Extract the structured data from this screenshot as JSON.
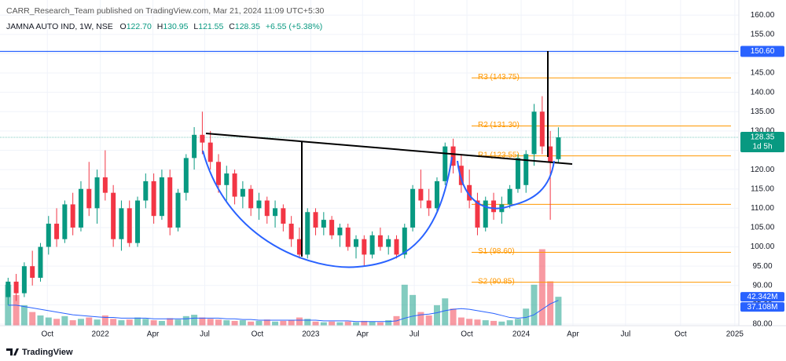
{
  "header": {
    "publisher": "CARR_Research_Team published on TradingView.com, Mar 21, 2024 11:09 UTC+5:30",
    "symbol": "JAMNA AUTO IND, 1W, NSE",
    "ohlc_labels": [
      "O",
      "H",
      "L",
      "C"
    ],
    "ohlc_values": [
      "122.70",
      "130.95",
      "121.55",
      "128.35"
    ],
    "change": "+6.55 (+5.38%)"
  },
  "footer": {
    "brand": "TradingView"
  },
  "chart_data": {
    "type": "candlestick",
    "up_color": "#089981",
    "down_color": "#f23645",
    "open": [
      87,
      91,
      88,
      95,
      92,
      100,
      106,
      102,
      111,
      105,
      115,
      110,
      118,
      114,
      102,
      110,
      101,
      112,
      117,
      108,
      118,
      105,
      114,
      123,
      129,
      127,
      122,
      116,
      119,
      113,
      115,
      110,
      112,
      108,
      110,
      106,
      102,
      98,
      109,
      105,
      107,
      103,
      105,
      100,
      102,
      98,
      103,
      100,
      102,
      98,
      105,
      115,
      112,
      110,
      117,
      126,
      121,
      116,
      112,
      105,
      112,
      109,
      111,
      115,
      116,
      124,
      135,
      126,
      122.7
    ],
    "high": [
      92,
      93,
      96,
      99,
      101,
      108,
      110,
      112,
      114,
      117,
      122,
      120,
      125,
      116,
      112,
      112,
      113,
      119,
      119,
      120,
      120,
      115,
      124,
      131,
      135,
      130,
      124,
      121,
      120,
      117,
      116,
      114,
      113,
      112,
      111,
      108,
      105,
      110,
      110,
      109,
      108,
      106,
      106,
      103,
      103,
      104,
      105,
      103,
      103,
      106,
      116,
      120,
      115,
      118,
      127,
      128,
      124,
      120,
      114,
      113,
      114,
      113,
      116,
      124,
      125,
      137,
      139,
      130,
      130.95
    ],
    "low": [
      85,
      86,
      87,
      90,
      91,
      98,
      100,
      101,
      103,
      104,
      108,
      106,
      112,
      100,
      99,
      100,
      100,
      110,
      106,
      107,
      103,
      104,
      112,
      120,
      124,
      120,
      114,
      112,
      111,
      110,
      108,
      107,
      106,
      105,
      104,
      100,
      97,
      97,
      103,
      103,
      102,
      100,
      99,
      97,
      95,
      97,
      99,
      98,
      97,
      97,
      104,
      110,
      108,
      109,
      116,
      119,
      114,
      110,
      103,
      104,
      107,
      106,
      110,
      114,
      114,
      121,
      124,
      107,
      121.55
    ],
    "close": [
      91,
      88,
      95,
      92,
      100,
      106,
      102,
      111,
      105,
      115,
      110,
      118,
      114,
      102,
      110,
      101,
      112,
      117,
      108,
      118,
      105,
      114,
      123,
      129,
      127,
      122,
      116,
      119,
      113,
      115,
      110,
      112,
      108,
      110,
      106,
      102,
      98,
      109,
      105,
      107,
      103,
      105,
      100,
      102,
      98,
      103,
      100,
      102,
      98,
      105,
      115,
      112,
      110,
      117,
      126,
      121,
      116,
      112,
      105,
      112,
      109,
      111,
      115,
      123,
      124,
      135,
      126,
      121.8,
      128.35
    ],
    "volume": [
      60,
      45,
      30,
      20,
      15,
      12,
      10,
      14,
      8,
      10,
      12,
      9,
      15,
      10,
      8,
      9,
      12,
      10,
      8,
      7,
      11,
      9,
      14,
      16,
      12,
      10,
      9,
      8,
      7,
      8,
      6,
      7,
      9,
      6,
      7,
      8,
      12,
      10,
      6,
      5,
      6,
      5,
      6,
      5,
      7,
      6,
      5,
      8,
      14,
      60,
      45,
      20,
      15,
      30,
      40,
      25,
      12,
      10,
      9,
      8,
      7,
      6,
      8,
      10,
      25,
      60,
      112,
      65,
      42.342
    ],
    "volume_label": "42.342M",
    "volume_ma": [
      30,
      30,
      28,
      26,
      24,
      22,
      20,
      18,
      16,
      15,
      14,
      13,
      12,
      12,
      11,
      11,
      11,
      11,
      10,
      10,
      10,
      10,
      10,
      11,
      11,
      11,
      11,
      10,
      10,
      9,
      9,
      8,
      8,
      8,
      8,
      8,
      8,
      8,
      8,
      7,
      7,
      7,
      7,
      6,
      6,
      6,
      6,
      6,
      7,
      11,
      14,
      16,
      17,
      19,
      22,
      24,
      25,
      24,
      22,
      20,
      18,
      15,
      12,
      11,
      12,
      16,
      24,
      32,
      37.108
    ],
    "volume_ma_label": "37.108M",
    "xlim": [
      -1,
      90.3
    ],
    "xticks": [
      {
        "value": 4.85,
        "label": "Oct"
      },
      {
        "value": 11.4,
        "label": "2022"
      },
      {
        "value": 17.9,
        "label": "Apr"
      },
      {
        "value": 24.3,
        "label": "Jul"
      },
      {
        "value": 30.8,
        "label": "Oct"
      },
      {
        "value": 37.4,
        "label": "2023"
      },
      {
        "value": 43.8,
        "label": "Apr"
      },
      {
        "value": 50.2,
        "label": "Jul"
      },
      {
        "value": 56.7,
        "label": "Oct"
      },
      {
        "value": 63.4,
        "label": "2024"
      },
      {
        "value": 69.8,
        "label": "Apr"
      },
      {
        "value": 76.3,
        "label": "Jul"
      },
      {
        "value": 83.1,
        "label": "Oct"
      },
      {
        "value": 89.8,
        "label": "2025"
      }
    ],
    "ylim": [
      79.6,
      163.9
    ],
    "yticks": [
      {
        "value": 80,
        "label": "80.00"
      },
      {
        "value": 85,
        "label": "85.00"
      },
      {
        "value": 90,
        "label": "90.00"
      },
      {
        "value": 95,
        "label": "95.00"
      },
      {
        "value": 100,
        "label": "100.00"
      },
      {
        "value": 105,
        "label": "105.00"
      },
      {
        "value": 110,
        "label": "110.00"
      },
      {
        "value": 115,
        "label": "115.00"
      },
      {
        "value": 120,
        "label": "120.00"
      },
      {
        "value": 125,
        "label": "125.00"
      },
      {
        "value": 130,
        "label": "130.00"
      },
      {
        "value": 135,
        "label": "135.00"
      },
      {
        "value": 140,
        "label": "140.00"
      },
      {
        "value": 145,
        "label": "145.00"
      },
      {
        "value": 150,
        "label": "150.00"
      },
      {
        "value": 155,
        "label": "155.00"
      },
      {
        "value": 160,
        "label": "160.00"
      }
    ],
    "grid": true,
    "hline": {
      "value": 150.6,
      "label": "150.60",
      "color": "#2962ff"
    },
    "last_price": {
      "value": 128.35,
      "label": "128.35",
      "countdown": "1d 5h"
    },
    "level_color": "#ff9800",
    "levels": [
      {
        "label": "R3 (143.75)",
        "value": 143.75
      },
      {
        "label": "R2 (131.30)",
        "value": 131.3
      },
      {
        "label": "R1 (123.55)",
        "value": 123.55
      },
      {
        "value": 111
      },
      {
        "label": "S1 (98.60)",
        "value": 98.6
      },
      {
        "label": "S2 (90.85)",
        "value": 90.85
      }
    ]
  }
}
